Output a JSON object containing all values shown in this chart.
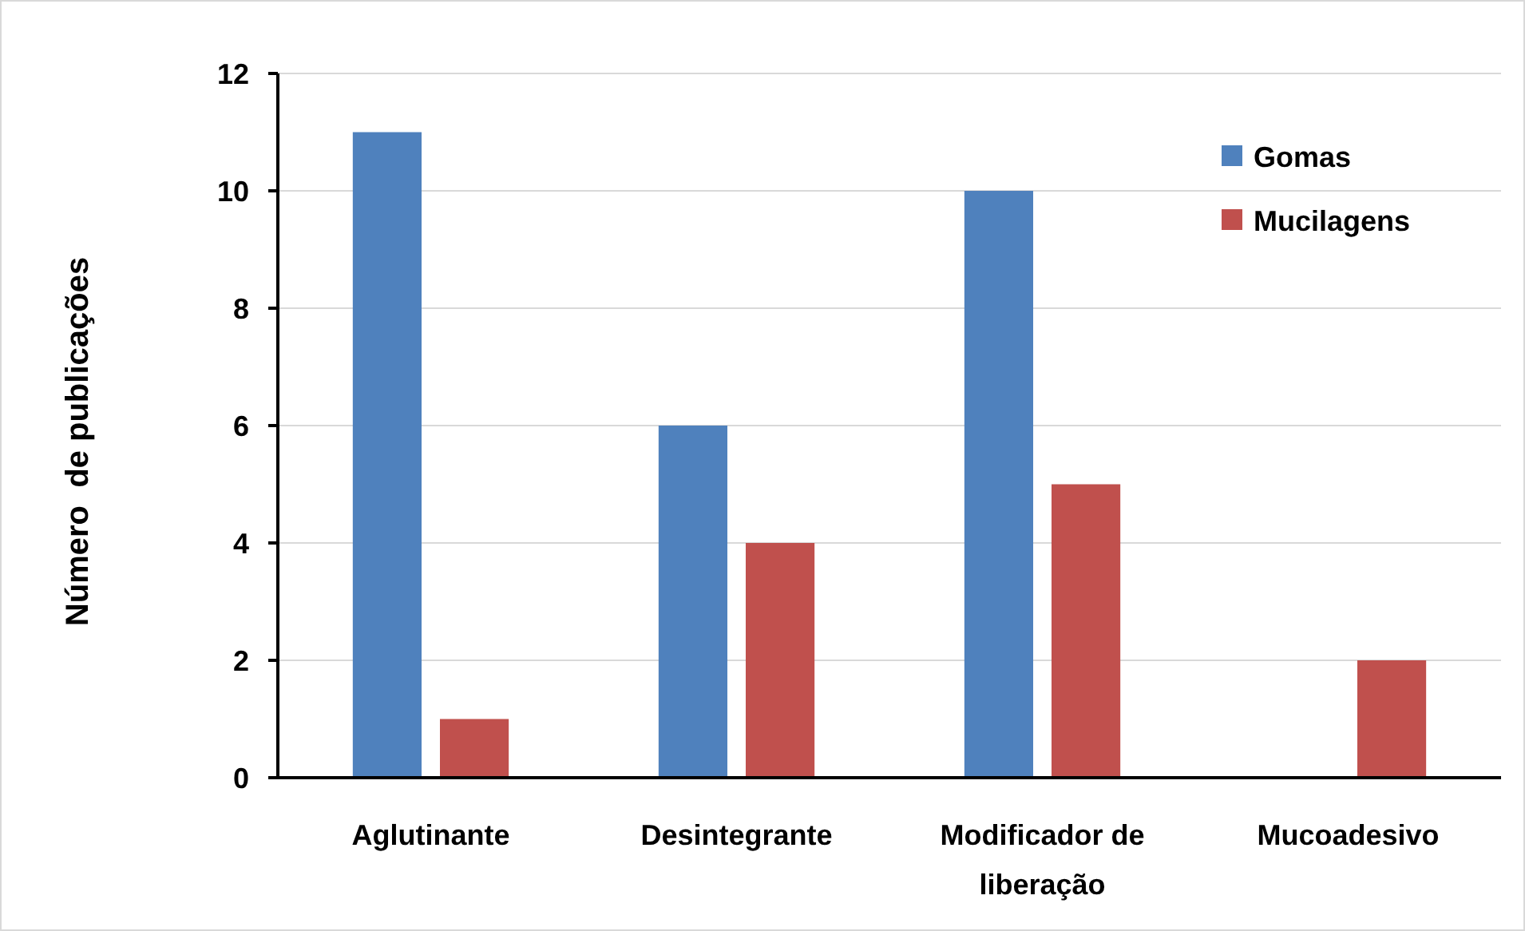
{
  "chart_data": {
    "type": "bar",
    "ylabel": "Número  de publicações",
    "categories": [
      "Aglutinante",
      "Desintegrante",
      "Modificador de liberação",
      "Mucoadesivo"
    ],
    "series": [
      {
        "name": "Gomas",
        "color": "#4f81bd",
        "values": [
          11,
          6,
          10,
          0
        ]
      },
      {
        "name": "Mucilagens",
        "color": "#c0504d",
        "values": [
          1,
          4,
          5,
          2
        ]
      }
    ],
    "ylim": [
      0,
      12
    ],
    "yticks": [
      0,
      2,
      4,
      6,
      8,
      10,
      12
    ],
    "grid": "y",
    "legend": "top right"
  }
}
